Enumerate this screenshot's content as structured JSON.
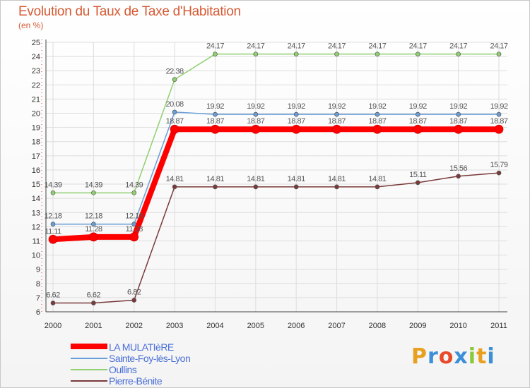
{
  "title": "Evolution du Taux de Taxe d'Habitation",
  "subtitle": "(en %)",
  "logo": {
    "text": "Proxiti",
    "colors": [
      "#e8a020",
      "#3c8fd8",
      "#e84a2a",
      "#3c8fd8",
      "#8cc83c",
      "#e8a020",
      "#3c8fd8"
    ]
  },
  "chart_data": {
    "type": "line",
    "categories": [
      "2000",
      "2001",
      "2002",
      "2003",
      "2004",
      "2005",
      "2006",
      "2007",
      "2008",
      "2009",
      "2010",
      "2011"
    ],
    "ylim": [
      6,
      25
    ],
    "yticks": [
      6,
      7,
      8,
      9,
      10,
      11,
      12,
      13,
      14,
      15,
      16,
      17,
      18,
      19,
      20,
      21,
      22,
      23,
      24,
      25
    ],
    "grid": true,
    "legend_position": "bottom-left",
    "series": [
      {
        "name": "LA MULATIèRE",
        "color": "#ff0000",
        "values": [
          11.11,
          11.28,
          11.28,
          18.87,
          18.87,
          18.87,
          18.87,
          18.87,
          18.87,
          18.87,
          18.87,
          18.87
        ],
        "labels": [
          "11.11",
          "11.28",
          "11.28",
          "18.87",
          "18.87",
          "18.87",
          "18.87",
          "18.87",
          "18.87",
          "18.87",
          "18.87",
          "18.87"
        ]
      },
      {
        "name": "Sainte-Foy-lès-Lyon",
        "color": "#6a9ed8",
        "values": [
          12.18,
          12.18,
          12.18,
          20.08,
          19.92,
          19.92,
          19.92,
          19.92,
          19.92,
          19.92,
          19.92,
          19.92
        ],
        "labels": [
          "12.18",
          "12.18",
          "12.18",
          "20.08",
          "19.92",
          "19.92",
          "19.92",
          "19.92",
          "19.92",
          "19.92",
          "19.92",
          "19.92"
        ]
      },
      {
        "name": "Oullins",
        "color": "#90d070",
        "values": [
          14.39,
          14.39,
          14.39,
          22.38,
          24.17,
          24.17,
          24.17,
          24.17,
          24.17,
          24.17,
          24.17,
          24.17
        ],
        "labels": [
          "14.39",
          "14.39",
          "14.39",
          "22.38",
          "24.17",
          "24.17",
          "24.17",
          "24.17",
          "24.17",
          "24.17",
          "24.17",
          "24.17"
        ]
      },
      {
        "name": "Pierre-Bénite",
        "color": "#7a3a3a",
        "values": [
          6.62,
          6.62,
          6.82,
          14.81,
          14.81,
          14.81,
          14.81,
          14.81,
          14.81,
          15.11,
          15.56,
          15.79
        ],
        "labels": [
          "6.62",
          "6.62",
          "6.82",
          "14.81",
          "14.81",
          "14.81",
          "14.81",
          "14.81",
          "14.81",
          "15.11",
          "15.56",
          "15.79"
        ]
      }
    ]
  }
}
